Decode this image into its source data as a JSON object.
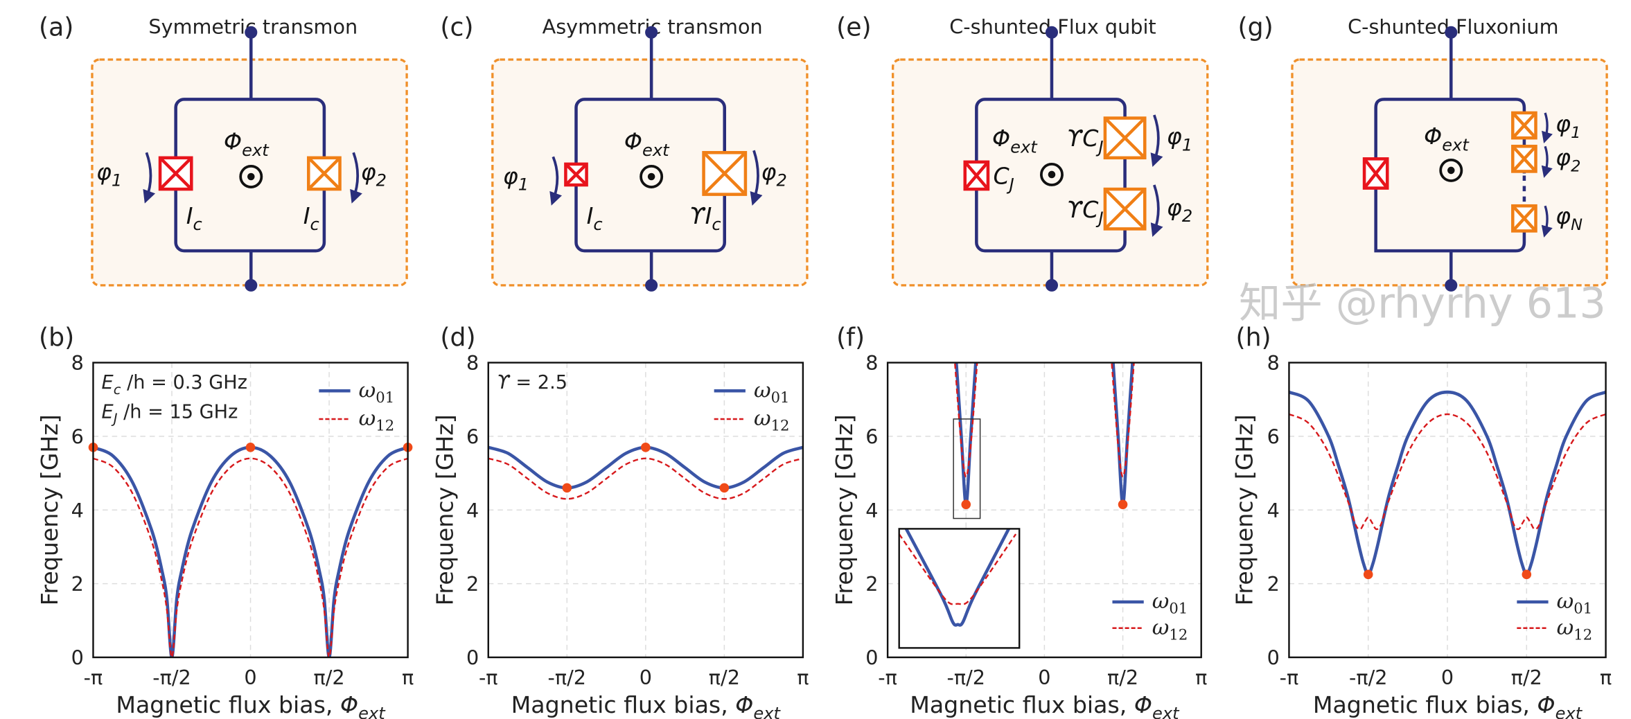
{
  "panels": {
    "a": {
      "label": "(a)",
      "title": "Symmetric transmon"
    },
    "b": {
      "label": "(b)"
    },
    "c": {
      "label": "(c)",
      "title": "Asymmetric transmon"
    },
    "d": {
      "label": "(d)"
    },
    "e": {
      "label": "(e)",
      "title": "C-shunted Flux qubit"
    },
    "f": {
      "label": "(f)"
    },
    "g": {
      "label": "(g)",
      "title": "C-shunted Fluxonium"
    },
    "h": {
      "label": "(h)"
    }
  },
  "circuits": {
    "colors": {
      "wire": "#2a2e7b",
      "junction_small": "#e8141c",
      "junction_large": "#f07f16",
      "box_fill": "#fdf7f0",
      "box_stroke": "#f0902a"
    },
    "a": {
      "flux": {
        "main": "Φ",
        "sub": "ext"
      },
      "phi1": {
        "main": "φ",
        "sub": "1"
      },
      "phi2": {
        "main": "φ",
        "sub": "2"
      },
      "left_junction": {
        "main": "I",
        "sub": "c"
      },
      "right_junction": {
        "main": "I",
        "sub": "c"
      }
    },
    "c": {
      "flux": {
        "main": "Φ",
        "sub": "ext"
      },
      "phi1": {
        "main": "φ",
        "sub": "1"
      },
      "phi2": {
        "main": "φ",
        "sub": "2"
      },
      "left_junction": {
        "main": "I",
        "sub": "c"
      },
      "right_junction": {
        "main": "ϒI",
        "sub": "c"
      }
    },
    "e": {
      "flux": {
        "main": "Φ",
        "sub": "ext"
      },
      "phi1": {
        "main": "φ",
        "sub": "1"
      },
      "phi2": {
        "main": "φ",
        "sub": "2"
      },
      "left_junction": {
        "main": "C",
        "sub": "J"
      },
      "right_junction_1": {
        "main": "ϒC",
        "sub": "J"
      },
      "right_junction_2": {
        "main": "ϒC",
        "sub": "J"
      }
    },
    "g": {
      "flux": {
        "main": "Φ",
        "sub": "ext"
      },
      "phi1": {
        "main": "φ",
        "sub": "1"
      },
      "phi2": {
        "main": "φ",
        "sub": "2"
      },
      "phiN": {
        "main": "φ",
        "sub": "N"
      }
    }
  },
  "watermark": "知乎 @rhyrhy 613",
  "chart_data": [
    {
      "type": "line",
      "panel": "(b)",
      "xlabel": "Magnetic flux bias, ",
      "xlabel_symbol": "Φ",
      "xlabel_sub": "ext",
      "ylabel": "Frequency [GHz]",
      "x_unit": "π",
      "xlim": [
        -1,
        1
      ],
      "ylim": [
        0,
        8
      ],
      "xticks": [
        -1,
        -0.5,
        0,
        0.5,
        1
      ],
      "xtick_labels": [
        "-π",
        "-π/2",
        "0",
        "π/2",
        "π"
      ],
      "yticks": [
        0,
        2,
        4,
        6,
        8
      ],
      "ytick_labels": [
        "0",
        "2",
        "4",
        "6",
        "8"
      ],
      "grid": true,
      "legend": "top-right",
      "annotations": [
        {
          "main": "E",
          "sub": "c",
          "rest": " /h = 0.3 GHz"
        },
        {
          "main": "E",
          "sub": "J",
          "rest": " /h = 15 GHz"
        }
      ],
      "series": [
        {
          "name": "ω01",
          "symbol": "ω",
          "sub": "01",
          "color": "#3a55a6",
          "style": "solid",
          "x": [
            -1,
            -0.875,
            -0.75,
            -0.625,
            -0.5625,
            -0.53125,
            -0.5,
            -0.46875,
            -0.4375,
            -0.375,
            -0.25,
            -0.125,
            0,
            0.125,
            0.25,
            0.375,
            0.4375,
            0.46875,
            0.5,
            0.53125,
            0.5625,
            0.625,
            0.75,
            0.875,
            1
          ],
          "y": [
            5.7,
            5.47,
            4.75,
            3.41,
            2.35,
            1.58,
            0,
            1.58,
            2.35,
            3.41,
            4.75,
            5.47,
            5.7,
            5.47,
            4.75,
            3.41,
            2.35,
            1.58,
            0,
            1.58,
            2.35,
            3.41,
            4.75,
            5.47,
            5.7
          ]
        },
        {
          "name": "ω12",
          "symbol": "ω",
          "sub": "12",
          "color": "#d7191c",
          "style": "dashed",
          "x": [
            -1,
            -0.875,
            -0.75,
            -0.625,
            -0.5625,
            -0.53125,
            -0.5,
            -0.46875,
            -0.4375,
            -0.375,
            -0.25,
            -0.125,
            0,
            0.125,
            0.25,
            0.375,
            0.4375,
            0.46875,
            0.5,
            0.53125,
            0.5625,
            0.625,
            0.75,
            0.875,
            1
          ],
          "y": [
            5.4,
            5.17,
            4.45,
            3.11,
            2.05,
            1.28,
            0,
            1.28,
            2.05,
            3.11,
            4.45,
            5.17,
            5.4,
            5.17,
            4.45,
            3.11,
            2.05,
            1.28,
            0,
            1.28,
            2.05,
            3.11,
            4.45,
            5.17,
            5.4
          ]
        }
      ],
      "markers": {
        "color": "#f04a18",
        "x": [
          -1,
          0,
          1
        ],
        "y": [
          5.7,
          5.7,
          5.7
        ]
      }
    },
    {
      "type": "line",
      "panel": "(d)",
      "xlabel": "Magnetic flux bias, ",
      "xlabel_symbol": "Φ",
      "xlabel_sub": "ext",
      "ylabel": "Frequency [GHz]",
      "x_unit": "π",
      "xlim": [
        -1,
        1
      ],
      "ylim": [
        0,
        8
      ],
      "xticks": [
        -1,
        -0.5,
        0,
        0.5,
        1
      ],
      "xtick_labels": [
        "-π",
        "-π/2",
        "0",
        "π/2",
        "π"
      ],
      "yticks": [
        0,
        2,
        4,
        6,
        8
      ],
      "ytick_labels": [
        "0",
        "2",
        "4",
        "6",
        "8"
      ],
      "grid": true,
      "legend": "top-right",
      "annotations": [
        {
          "main": "ϒ",
          "sub": "",
          "rest": " = 2.5"
        }
      ],
      "series": [
        {
          "name": "ω01",
          "symbol": "ω",
          "sub": "01",
          "color": "#3a55a6",
          "style": "solid",
          "x": [
            -1,
            -0.875,
            -0.75,
            -0.625,
            -0.5,
            -0.375,
            -0.25,
            -0.125,
            0,
            0.125,
            0.25,
            0.375,
            0.5,
            0.625,
            0.75,
            0.875,
            1
          ],
          "y": [
            5.7,
            5.54,
            5.15,
            4.76,
            4.6,
            4.76,
            5.15,
            5.54,
            5.7,
            5.54,
            5.15,
            4.76,
            4.6,
            4.76,
            5.15,
            5.54,
            5.7
          ]
        },
        {
          "name": "ω12",
          "symbol": "ω",
          "sub": "12",
          "color": "#d7191c",
          "style": "dashed",
          "x": [
            -1,
            -0.875,
            -0.75,
            -0.625,
            -0.5,
            -0.375,
            -0.25,
            -0.125,
            0,
            0.125,
            0.25,
            0.375,
            0.5,
            0.625,
            0.75,
            0.875,
            1
          ],
          "y": [
            5.4,
            5.24,
            4.85,
            4.46,
            4.3,
            4.46,
            4.85,
            5.24,
            5.4,
            5.24,
            4.85,
            4.46,
            4.3,
            4.46,
            4.85,
            5.24,
            5.4
          ]
        }
      ],
      "markers": {
        "color": "#f04a18",
        "x": [
          -0.5,
          0,
          0.5
        ],
        "y": [
          4.6,
          5.7,
          4.6
        ]
      }
    },
    {
      "type": "line",
      "panel": "(f)",
      "xlabel": "Magnetic flux bias, ",
      "xlabel_symbol": "Φ",
      "xlabel_sub": "ext",
      "ylabel": "Frequency [GHz]",
      "x_unit": "π",
      "xlim": [
        -1,
        1
      ],
      "ylim": [
        0,
        8
      ],
      "xticks": [
        -1,
        -0.5,
        0,
        0.5,
        1
      ],
      "xtick_labels": [
        "-π",
        "-π/2",
        "0",
        "π/2",
        "π"
      ],
      "yticks": [
        0,
        2,
        4,
        6,
        8
      ],
      "ytick_labels": [
        "0",
        "2",
        "4",
        "6",
        "8"
      ],
      "grid": true,
      "legend": "bottom-right",
      "annotations": [],
      "series": [
        {
          "name": "ω01",
          "symbol": "ω",
          "sub": "01",
          "color": "#3a55a6",
          "style": "solid",
          "segments": [
            {
              "x": [
                -0.565,
                -0.53,
                -0.5,
                -0.47,
                -0.435
              ],
              "y": [
                8.2,
                6.0,
                4.15,
                6.0,
                8.2
              ]
            },
            {
              "x": [
                0.435,
                0.47,
                0.5,
                0.53,
                0.565
              ],
              "y": [
                8.2,
                6.0,
                4.15,
                6.0,
                8.2
              ]
            }
          ]
        },
        {
          "name": "ω12",
          "symbol": "ω",
          "sub": "12",
          "color": "#d7191c",
          "style": "dashed",
          "segments": [
            {
              "x": [
                -0.575,
                -0.5,
                -0.425
              ],
              "y": [
                8.2,
                4.9,
                8.2
              ]
            },
            {
              "x": [
                0.425,
                0.5,
                0.575
              ],
              "y": [
                8.2,
                4.9,
                8.2
              ]
            }
          ]
        }
      ],
      "markers": {
        "color": "#f04a18",
        "x": [
          -0.5,
          0.5
        ],
        "y": [
          4.15,
          4.15
        ]
      },
      "inset_region": {
        "x": [
          -0.58,
          -0.41
        ],
        "y": [
          3.77,
          6.47
        ]
      },
      "inset": {
        "xlim": [
          -0.58,
          -0.41
        ],
        "ylim": [
          3.77,
          6.47
        ],
        "series": [
          {
            "name": "ω01",
            "color": "#3a55a6",
            "style": "solid",
            "x": [
              -0.57,
              -0.52,
              -0.504,
              -0.497,
              -0.49,
              -0.474,
              -0.425
            ],
            "y": [
              6.47,
              4.95,
              4.35,
              4.3,
              4.35,
              4.95,
              6.47
            ]
          },
          {
            "name": "ω12",
            "color": "#d7191c",
            "style": "dashed",
            "x": [
              -0.58,
              -0.53,
              -0.51,
              -0.497,
              -0.484,
              -0.464,
              -0.415
            ],
            "y": [
              6.35,
              5.2,
              4.8,
              4.77,
              4.8,
              5.2,
              6.35
            ]
          }
        ]
      }
    },
    {
      "type": "line",
      "panel": "(h)",
      "xlabel": "Magnetic flux bias, ",
      "xlabel_symbol": "Φ",
      "xlabel_sub": "ext",
      "ylabel": "Frequency [GHz]",
      "x_unit": "π",
      "xlim": [
        -1,
        1
      ],
      "ylim": [
        0,
        8
      ],
      "xticks": [
        -1,
        -0.5,
        0,
        0.5,
        1
      ],
      "xtick_labels": [
        "-π",
        "-π/2",
        "0",
        "π/2",
        "π"
      ],
      "yticks": [
        0,
        2,
        4,
        6,
        8
      ],
      "ytick_labels": [
        "0",
        "2",
        "4",
        "6",
        "8"
      ],
      "grid": true,
      "legend": "bottom-right",
      "annotations": [],
      "series": [
        {
          "name": "ω01",
          "symbol": "ω",
          "sub": "01",
          "color": "#3a55a6",
          "style": "solid",
          "x": [
            -1,
            -0.875,
            -0.75,
            -0.6875,
            -0.625,
            -0.5625,
            -0.53,
            -0.5,
            -0.47,
            -0.4375,
            -0.375,
            -0.3125,
            -0.25,
            -0.125,
            0,
            0.125,
            0.25,
            0.3125,
            0.375,
            0.4375,
            0.47,
            0.5,
            0.53,
            0.5625,
            0.625,
            0.6875,
            0.75,
            0.875,
            1
          ],
          "y": [
            7.2,
            6.95,
            6.0,
            5.2,
            4.3,
            3.1,
            2.55,
            2.25,
            2.55,
            3.1,
            4.3,
            5.2,
            6.0,
            6.95,
            7.2,
            6.95,
            6.0,
            5.2,
            4.3,
            3.1,
            2.55,
            2.25,
            2.55,
            3.1,
            4.3,
            5.2,
            6.0,
            6.95,
            7.2
          ]
        },
        {
          "name": "ω12",
          "symbol": "ω",
          "sub": "12",
          "color": "#d7191c",
          "style": "dashed",
          "x": [
            -1,
            -0.875,
            -0.75,
            -0.625,
            -0.58,
            -0.55,
            -0.525,
            -0.5,
            -0.475,
            -0.45,
            -0.42,
            -0.375,
            -0.25,
            -0.125,
            0,
            0.125,
            0.25,
            0.375,
            0.42,
            0.45,
            0.475,
            0.5,
            0.525,
            0.55,
            0.58,
            0.625,
            0.75,
            0.875,
            1
          ],
          "y": [
            6.6,
            6.35,
            5.55,
            4.2,
            3.6,
            3.48,
            3.65,
            3.8,
            3.65,
            3.48,
            3.6,
            4.2,
            5.55,
            6.35,
            6.6,
            6.35,
            5.55,
            4.2,
            3.6,
            3.48,
            3.65,
            3.8,
            3.65,
            3.48,
            3.6,
            4.2,
            5.55,
            6.35,
            6.6
          ]
        }
      ],
      "markers": {
        "color": "#f04a18",
        "x": [
          -0.5,
          0.5
        ],
        "y": [
          2.25,
          2.25
        ]
      }
    }
  ]
}
